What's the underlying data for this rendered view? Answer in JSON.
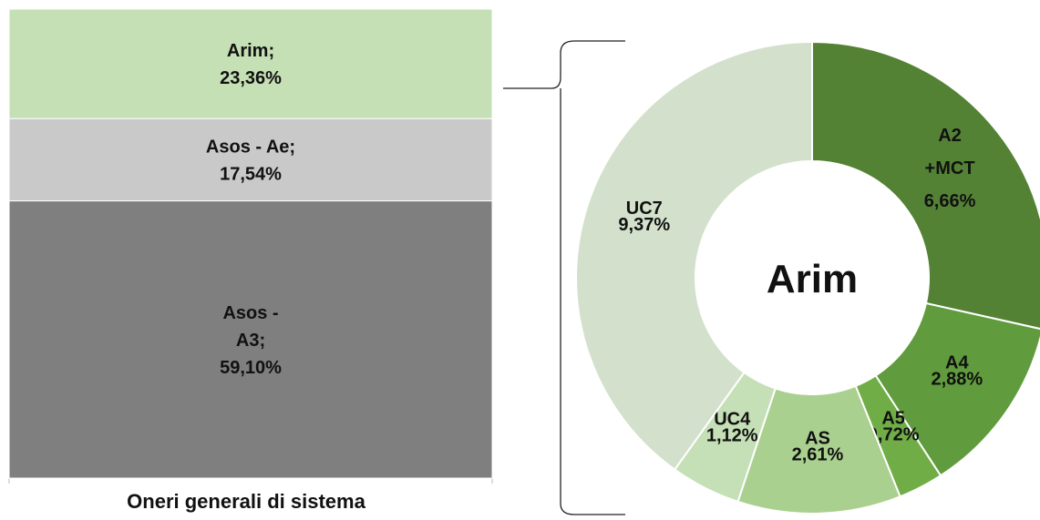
{
  "chart_data": [
    {
      "type": "stacked_bar",
      "title": "Oneri generali di sistema",
      "series": [
        {
          "color": "#c5e0b4",
          "values": [
            23.36
          ],
          "value_labels": [
            "Arim;\n23,36%"
          ]
        },
        {
          "color": "#c9c9c9",
          "values": [
            17.54
          ],
          "value_labels": [
            "Asos - Ae;\n17,54%"
          ]
        },
        {
          "color": "#7f7f7f",
          "values": [
            59.1
          ],
          "value_labels": [
            "Asos -\nA3;\n59,10%"
          ]
        }
      ]
    },
    {
      "type": "donut",
      "center_label": "Arim",
      "categories": [
        "A2\n+MCT",
        "A4",
        "A5",
        "AS",
        "UC4",
        "UC7"
      ],
      "values": [
        6.66,
        2.88,
        0.72,
        2.61,
        1.12,
        9.37
      ],
      "value_labels": [
        "6,66%",
        "2,88%",
        "0,72%",
        "2,61%",
        "1,12%",
        "9,37%"
      ],
      "colors": [
        "#548235",
        "#609b3d",
        "#70ad47",
        "#a9d08e",
        "#c5dfb6",
        "#d3e1cc"
      ]
    }
  ]
}
